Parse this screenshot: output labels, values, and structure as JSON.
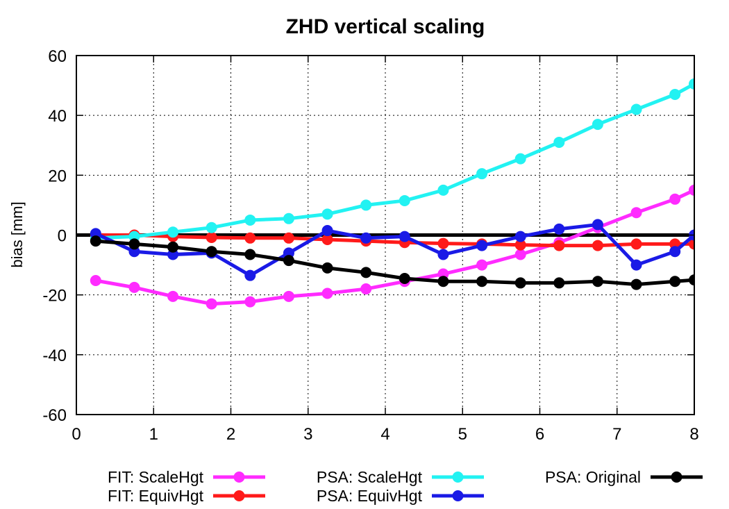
{
  "chart_data": {
    "type": "line",
    "title": "ZHD vertical scaling",
    "xlabel": "",
    "ylabel": "bias [mm]",
    "xlim": [
      0,
      8
    ],
    "ylim": [
      -60,
      60
    ],
    "xticks": [
      0,
      1,
      2,
      3,
      4,
      5,
      6,
      7,
      8
    ],
    "yticks": [
      -60,
      -40,
      -20,
      0,
      20,
      40,
      60
    ],
    "grid": true,
    "legend_position": "bottom",
    "series": [
      {
        "name": "FIT: ScaleHgt",
        "color": "#ff2bff",
        "x": [
          0.25,
          0.75,
          1.25,
          1.75,
          2.25,
          2.75,
          3.25,
          3.75,
          4.25,
          4.75,
          5.25,
          5.75,
          6.25,
          6.75,
          7.25,
          7.75,
          8.0
        ],
        "y": [
          -15.2,
          -17.5,
          -20.5,
          -23.0,
          -22.3,
          -20.5,
          -19.5,
          -18.0,
          -15.5,
          -13.0,
          -10.0,
          -6.5,
          -2.5,
          2.5,
          7.5,
          12.0,
          15.0
        ]
      },
      {
        "name": "FIT: EquivHgt",
        "color": "#ff1a1a",
        "x": [
          0.25,
          0.75,
          1.25,
          1.75,
          2.25,
          2.75,
          3.25,
          3.75,
          4.25,
          4.75,
          5.25,
          5.75,
          6.25,
          6.75,
          7.25,
          7.75,
          8.0
        ],
        "y": [
          0.0,
          0.0,
          -0.5,
          -0.8,
          -1.0,
          -1.0,
          -1.5,
          -2.0,
          -2.5,
          -2.8,
          -3.0,
          -3.3,
          -3.5,
          -3.5,
          -3.0,
          -3.0,
          -3.0
        ]
      },
      {
        "name": "PSA: ScaleHgt",
        "color": "#22f2f2",
        "x": [
          0.25,
          0.75,
          1.25,
          1.75,
          2.25,
          2.75,
          3.25,
          3.75,
          4.25,
          4.75,
          5.25,
          5.75,
          6.25,
          6.75,
          7.25,
          7.75,
          8.0
        ],
        "y": [
          -1.0,
          -0.5,
          1.0,
          2.5,
          5.0,
          5.5,
          7.0,
          10.0,
          11.5,
          15.0,
          20.5,
          25.5,
          31.0,
          37.0,
          42.0,
          47.0,
          50.5
        ]
      },
      {
        "name": "PSA: EquivHgt",
        "color": "#1a1ae6",
        "x": [
          0.25,
          0.75,
          1.25,
          1.75,
          2.25,
          2.75,
          3.25,
          3.75,
          4.25,
          4.75,
          5.25,
          5.75,
          6.25,
          6.75,
          7.25,
          7.75,
          8.0
        ],
        "y": [
          0.5,
          -5.5,
          -6.5,
          -6.0,
          -13.5,
          -6.0,
          1.5,
          -1.0,
          -0.5,
          -6.5,
          -3.5,
          -0.5,
          2.0,
          3.5,
          -10.0,
          -5.5,
          0.0
        ]
      },
      {
        "name": "PSA: Original",
        "color": "#000000",
        "x": [
          0.25,
          0.75,
          1.25,
          1.75,
          2.25,
          2.75,
          3.25,
          3.75,
          4.25,
          4.75,
          5.25,
          5.75,
          6.25,
          6.75,
          7.25,
          7.75,
          8.0
        ],
        "y": [
          -2.0,
          -3.0,
          -4.0,
          -5.5,
          -6.5,
          -8.5,
          -11.0,
          -12.5,
          -14.5,
          -15.5,
          -15.5,
          -16.0,
          -16.0,
          -15.5,
          -16.5,
          -15.5,
          -15.0
        ]
      }
    ],
    "reference_line": {
      "y": 0,
      "color": "#000000"
    }
  }
}
